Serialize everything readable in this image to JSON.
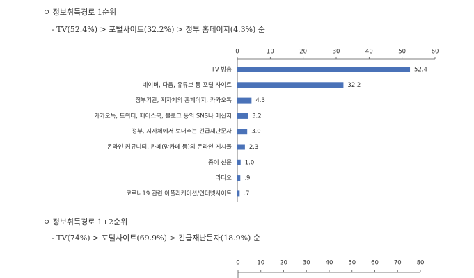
{
  "sections": [
    {
      "heading": "ㅇ 정보취득경로 1순위",
      "summary": "- TV(52.4%) > 포털사이트(32.2%) > 정부 홈페이지(4.3%) 순"
    },
    {
      "heading": "ㅇ 정보취득경로 1+2순위",
      "summary": "- TV(74%) > 포털사이트(69.9%) > 긴급재난문자(18.9%) 순"
    }
  ],
  "chart_data": [
    {
      "type": "bar",
      "categories": [
        "TV 방송",
        "네이버, 다음, 유튜브 등 포털 사이트",
        "정부기관, 지자체의 홈페이지, 카카오톡",
        "카카오톡, 트위터, 페이스북, 블로그 등의 SNS나 메신저",
        "정부, 지자체에서 보내주는 긴급재난문자",
        "온라인 커뮤니티, 카페(맘카페 등)의 온라인 게시물",
        "종이 신문",
        "라디오",
        "코로나19 관련 어플리케이션/인터넷사이트"
      ],
      "values": [
        52.4,
        32.2,
        4.3,
        3.2,
        3.0,
        2.3,
        1.0,
        0.9,
        0.7
      ],
      "value_labels": [
        "52.4",
        "32.2",
        "4.3",
        "3.2",
        "3.0",
        "2.3",
        "1.0",
        ".9",
        ".7"
      ],
      "color": "#4a72b8",
      "xlim": [
        0,
        60
      ],
      "xticks": [
        0,
        10,
        20,
        30,
        40,
        50,
        60
      ]
    },
    {
      "type": "bar",
      "categories": [],
      "values": [],
      "color": "#4a72b8",
      "xlim": [
        0,
        80
      ],
      "xticks": [
        0,
        10,
        20,
        30,
        40,
        50,
        60,
        70,
        80
      ]
    }
  ]
}
